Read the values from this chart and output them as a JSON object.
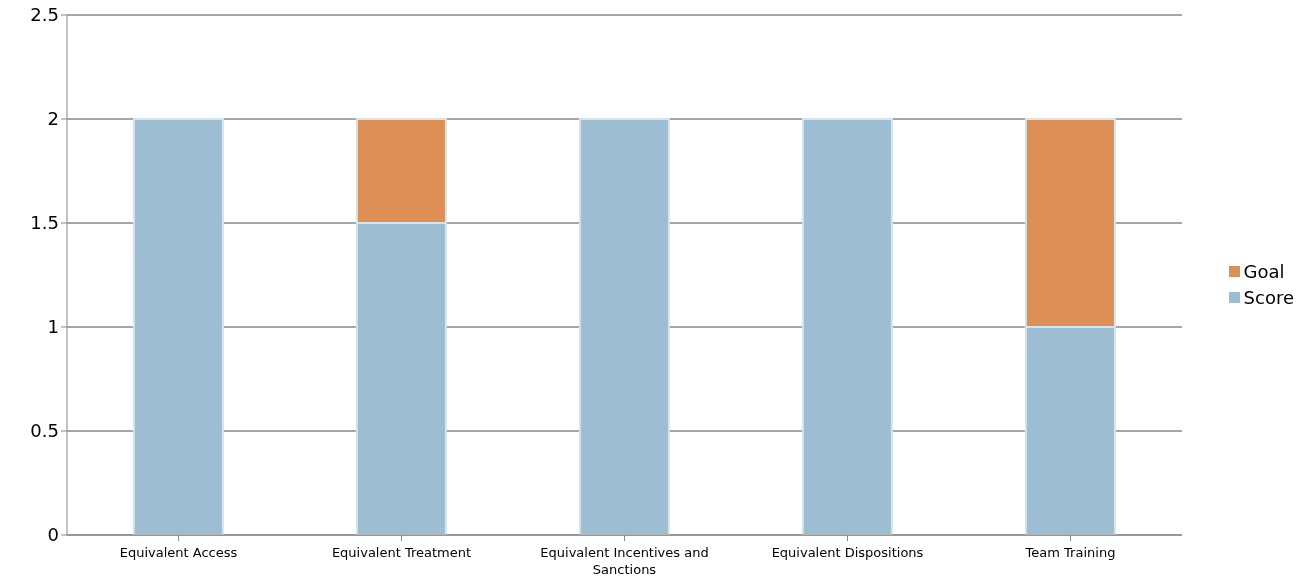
{
  "chart_data": {
    "type": "bar",
    "stacked": true,
    "categories": [
      "Equivalent Access",
      "Equivalent Treatment",
      "Equivalent Incentives and Sanctions",
      "Equivalent Dispositions",
      "Team Training"
    ],
    "series": [
      {
        "name": "Score",
        "color": "#9dbdd3",
        "values": [
          2,
          1.5,
          2,
          2,
          1
        ]
      },
      {
        "name": "Goal",
        "color": "#dd8f55",
        "values": [
          0,
          0.5,
          0,
          0,
          1
        ]
      }
    ],
    "ylim": [
      0,
      2.5
    ],
    "yticks": [
      0,
      0.5,
      1,
      1.5,
      2,
      2.5
    ],
    "grid": "y",
    "legend": "right"
  }
}
